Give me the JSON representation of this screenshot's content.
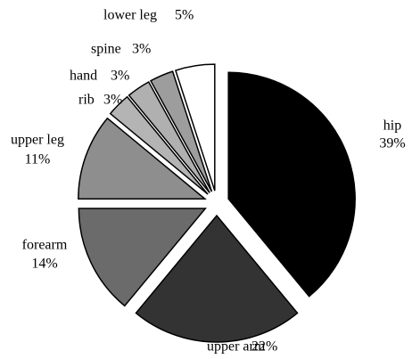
{
  "chart_data": {
    "type": "pie",
    "categories": [
      "hip",
      "upper arm",
      "forearm",
      "upper leg",
      "rib",
      "hand",
      "spine",
      "lower leg"
    ],
    "values": [
      39,
      22,
      14,
      11,
      3,
      3,
      3,
      5
    ],
    "value_labels": [
      "39%",
      "22%",
      "14%",
      "11%",
      "3%",
      "3%",
      "3%",
      "5%"
    ],
    "colors": [
      "#000000",
      "#333333",
      "#6b6b6b",
      "#8e8e8e",
      "#b4b4b4",
      "#b0b0b0",
      "#9d9d9d",
      "#ffffff"
    ]
  }
}
